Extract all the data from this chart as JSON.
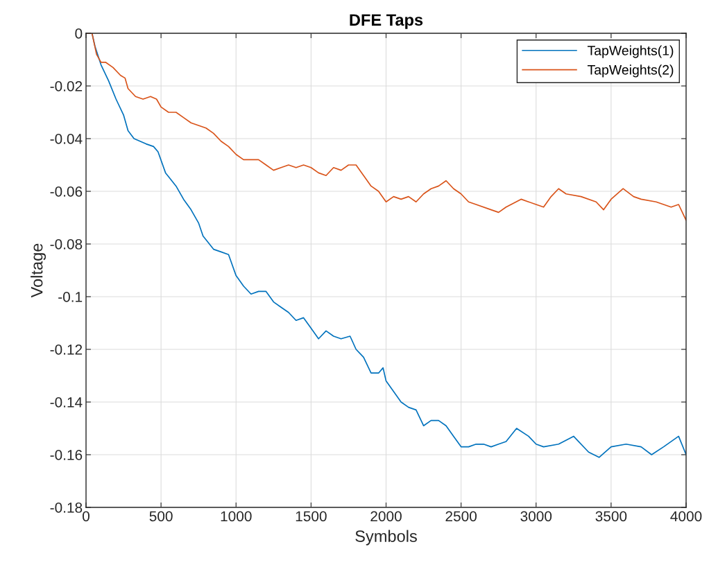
{
  "chart_data": {
    "type": "line",
    "title": "DFE Taps",
    "xlabel": "Symbols",
    "ylabel": "Voltage",
    "xlim": [
      0,
      4000
    ],
    "xticks": [
      0,
      500,
      1000,
      1500,
      2000,
      2500,
      3000,
      3500,
      4000
    ],
    "ylim": [
      -0.18,
      0
    ],
    "yticks": [
      -0.18,
      -0.16,
      -0.14,
      -0.12,
      -0.1,
      -0.08,
      -0.06,
      -0.04,
      -0.02,
      0
    ],
    "grid": true,
    "legend": "top right",
    "marker": "none",
    "line_style": "solid",
    "series": [
      {
        "name": "TapWeights(1)",
        "color": "#0072bd",
        "x": [
          0,
          40,
          60,
          100,
          150,
          200,
          250,
          280,
          320,
          400,
          450,
          480,
          530,
          600,
          650,
          700,
          750,
          780,
          850,
          900,
          950,
          1000,
          1050,
          1100,
          1150,
          1200,
          1250,
          1300,
          1350,
          1400,
          1450,
          1500,
          1550,
          1600,
          1650,
          1700,
          1760,
          1800,
          1850,
          1900,
          1950,
          1980,
          2000,
          2050,
          2100,
          2150,
          2200,
          2250,
          2300,
          2350,
          2400,
          2450,
          2500,
          2550,
          2600,
          2650,
          2700,
          2750,
          2800,
          2870,
          2950,
          3000,
          3050,
          3150,
          3250,
          3350,
          3420,
          3500,
          3600,
          3700,
          3770,
          3850,
          3950,
          4000
        ],
        "values": [
          0,
          0,
          -0.005,
          -0.012,
          -0.018,
          -0.025,
          -0.031,
          -0.037,
          -0.04,
          -0.042,
          -0.043,
          -0.045,
          -0.053,
          -0.058,
          -0.063,
          -0.067,
          -0.072,
          -0.077,
          -0.082,
          -0.083,
          -0.084,
          -0.092,
          -0.096,
          -0.099,
          -0.098,
          -0.098,
          -0.102,
          -0.104,
          -0.106,
          -0.109,
          -0.108,
          -0.112,
          -0.116,
          -0.113,
          -0.115,
          -0.116,
          -0.115,
          -0.12,
          -0.123,
          -0.129,
          -0.129,
          -0.127,
          -0.132,
          -0.136,
          -0.14,
          -0.142,
          -0.143,
          -0.149,
          -0.147,
          -0.147,
          -0.149,
          -0.153,
          -0.157,
          -0.157,
          -0.156,
          -0.156,
          -0.157,
          -0.156,
          -0.155,
          -0.15,
          -0.153,
          -0.156,
          -0.157,
          -0.156,
          -0.153,
          -0.159,
          -0.161,
          -0.157,
          -0.156,
          -0.157,
          -0.16,
          -0.157,
          -0.153,
          -0.16
        ]
      },
      {
        "name": "TapWeights(2)",
        "color": "#d95319",
        "x": [
          0,
          40,
          70,
          100,
          130,
          180,
          230,
          260,
          280,
          330,
          380,
          430,
          470,
          500,
          550,
          600,
          650,
          700,
          750,
          800,
          850,
          900,
          950,
          1000,
          1050,
          1100,
          1150,
          1200,
          1250,
          1300,
          1350,
          1400,
          1450,
          1500,
          1550,
          1600,
          1650,
          1700,
          1750,
          1800,
          1850,
          1900,
          1950,
          2000,
          2050,
          2100,
          2150,
          2200,
          2250,
          2300,
          2350,
          2400,
          2450,
          2500,
          2550,
          2600,
          2700,
          2750,
          2800,
          2900,
          2950,
          3000,
          3050,
          3100,
          3150,
          3200,
          3300,
          3400,
          3450,
          3500,
          3580,
          3650,
          3700,
          3800,
          3900,
          3950,
          4000
        ],
        "values": [
          0,
          0,
          -0.008,
          -0.011,
          -0.011,
          -0.013,
          -0.016,
          -0.017,
          -0.021,
          -0.024,
          -0.025,
          -0.024,
          -0.025,
          -0.028,
          -0.03,
          -0.03,
          -0.032,
          -0.034,
          -0.035,
          -0.036,
          -0.038,
          -0.041,
          -0.043,
          -0.046,
          -0.048,
          -0.048,
          -0.048,
          -0.05,
          -0.052,
          -0.051,
          -0.05,
          -0.051,
          -0.05,
          -0.051,
          -0.053,
          -0.054,
          -0.051,
          -0.052,
          -0.05,
          -0.05,
          -0.054,
          -0.058,
          -0.06,
          -0.064,
          -0.062,
          -0.063,
          -0.062,
          -0.064,
          -0.061,
          -0.059,
          -0.058,
          -0.056,
          -0.059,
          -0.061,
          -0.064,
          -0.065,
          -0.067,
          -0.068,
          -0.066,
          -0.063,
          -0.064,
          -0.065,
          -0.066,
          -0.062,
          -0.059,
          -0.061,
          -0.062,
          -0.064,
          -0.067,
          -0.063,
          -0.059,
          -0.062,
          -0.063,
          -0.064,
          -0.066,
          -0.065,
          -0.071
        ]
      }
    ]
  }
}
